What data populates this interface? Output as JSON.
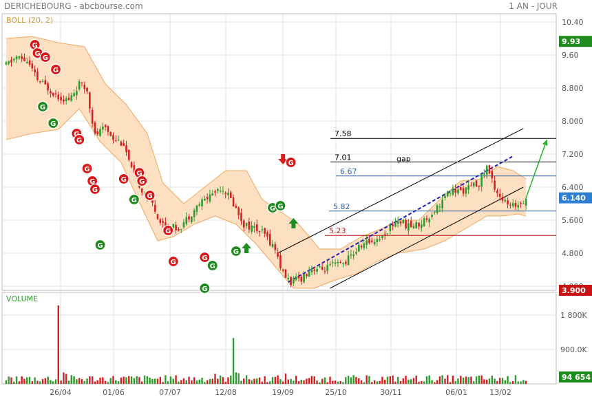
{
  "header": {
    "title": "DERICHEBOURG - abcbourse.com",
    "period": "1 AN - JOUR"
  },
  "colors": {
    "up": "#2e9b2e",
    "down": "#d42020",
    "band_fill": "#fde0c2",
    "band_line": "#f0a860",
    "grid": "#e2e2e2",
    "trend_dash": "#1f1fc0",
    "last_badge": "#2d7fd3",
    "high_badge": "#1e8c1e",
    "low_badge": "#c81414",
    "vol_badge": "#1e8c1e",
    "arrow_up": "#1e8c1e",
    "arrow_down": "#d42020",
    "projection": "#28b028"
  },
  "chart_data": [
    {
      "type": "candlestick",
      "title": "DERICHEBOURG",
      "indicator_label": "BOLL (20, 2)",
      "x_tick_labels": [
        "26/04",
        "01/06",
        "07/07",
        "12/08",
        "19/09",
        "25/10",
        "30/11",
        "06/01",
        "13/02"
      ],
      "y_tick_labels": [
        "4.000",
        "4.800",
        "5.600",
        "6.400",
        "7.200",
        "8.000",
        "8.800",
        "9.60",
        "10.40"
      ],
      "ylim": [
        3.9,
        10.6
      ],
      "grid": true,
      "badges": {
        "high": "9.93",
        "last": "6.140",
        "low": "3.900"
      },
      "horizontal_levels": [
        {
          "label": "7.58",
          "value": 7.58,
          "color": "#000000"
        },
        {
          "label": "7.01",
          "value": 7.01,
          "color": "#000000"
        },
        {
          "label": "6.67",
          "value": 6.67,
          "color": "#2f5fa8"
        },
        {
          "label": "5.82",
          "value": 5.82,
          "color": "#2f5fa8"
        },
        {
          "label": "5.23",
          "value": 5.23,
          "color": "#c81414"
        }
      ],
      "annotation": "gap",
      "path_points": [
        {
          "i": 0,
          "v": 9.35
        },
        {
          "i": 4,
          "v": 9.55
        },
        {
          "i": 8,
          "v": 9.45
        },
        {
          "i": 12,
          "v": 9.0
        },
        {
          "i": 16,
          "v": 8.8
        },
        {
          "i": 20,
          "v": 8.6
        },
        {
          "i": 24,
          "v": 8.5
        },
        {
          "i": 28,
          "v": 8.9
        },
        {
          "i": 31,
          "v": 8.75
        },
        {
          "i": 34,
          "v": 7.65
        },
        {
          "i": 38,
          "v": 7.85
        },
        {
          "i": 41,
          "v": 7.6
        },
        {
          "i": 45,
          "v": 7.45
        },
        {
          "i": 48,
          "v": 6.8
        },
        {
          "i": 52,
          "v": 6.35
        },
        {
          "i": 56,
          "v": 6.0
        },
        {
          "i": 59,
          "v": 5.55
        },
        {
          "i": 62,
          "v": 5.45
        },
        {
          "i": 66,
          "v": 5.4
        },
        {
          "i": 70,
          "v": 5.7
        },
        {
          "i": 74,
          "v": 6.0
        },
        {
          "i": 78,
          "v": 6.2
        },
        {
          "i": 82,
          "v": 6.4
        },
        {
          "i": 84,
          "v": 6.3
        },
        {
          "i": 87,
          "v": 6.0
        },
        {
          "i": 91,
          "v": 5.5
        },
        {
          "i": 95,
          "v": 5.4
        },
        {
          "i": 99,
          "v": 5.25
        },
        {
          "i": 103,
          "v": 4.9
        },
        {
          "i": 106,
          "v": 4.3
        },
        {
          "i": 109,
          "v": 4.1
        },
        {
          "i": 113,
          "v": 4.2
        },
        {
          "i": 117,
          "v": 4.45
        },
        {
          "i": 121,
          "v": 4.4
        },
        {
          "i": 125,
          "v": 4.5
        },
        {
          "i": 129,
          "v": 4.55
        },
        {
          "i": 133,
          "v": 4.8
        },
        {
          "i": 136,
          "v": 5.0
        },
        {
          "i": 140,
          "v": 5.1
        },
        {
          "i": 144,
          "v": 5.2
        },
        {
          "i": 148,
          "v": 5.5
        },
        {
          "i": 150,
          "v": 5.6
        },
        {
          "i": 154,
          "v": 5.45
        },
        {
          "i": 158,
          "v": 5.5
        },
        {
          "i": 162,
          "v": 5.7
        },
        {
          "i": 166,
          "v": 6.0
        },
        {
          "i": 170,
          "v": 6.3
        },
        {
          "i": 174,
          "v": 6.3
        },
        {
          "i": 178,
          "v": 6.4
        },
        {
          "i": 181,
          "v": 6.5
        },
        {
          "i": 184,
          "v": 6.9
        },
        {
          "i": 187,
          "v": 6.4
        },
        {
          "i": 190,
          "v": 6.1
        },
        {
          "i": 193,
          "v": 5.9
        },
        {
          "i": 196,
          "v": 6.0
        },
        {
          "i": 199,
          "v": 6.14
        }
      ],
      "band_upper": [
        {
          "i": 0,
          "v": 10.0
        },
        {
          "i": 10,
          "v": 10.05
        },
        {
          "i": 20,
          "v": 9.9
        },
        {
          "i": 30,
          "v": 9.8
        },
        {
          "i": 38,
          "v": 8.9
        },
        {
          "i": 46,
          "v": 8.4
        },
        {
          "i": 54,
          "v": 7.7
        },
        {
          "i": 60,
          "v": 6.5
        },
        {
          "i": 68,
          "v": 6.0
        },
        {
          "i": 76,
          "v": 6.4
        },
        {
          "i": 84,
          "v": 6.8
        },
        {
          "i": 92,
          "v": 6.8
        },
        {
          "i": 98,
          "v": 6.1
        },
        {
          "i": 104,
          "v": 5.85
        },
        {
          "i": 112,
          "v": 5.5
        },
        {
          "i": 120,
          "v": 4.9
        },
        {
          "i": 128,
          "v": 4.9
        },
        {
          "i": 136,
          "v": 5.2
        },
        {
          "i": 144,
          "v": 5.4
        },
        {
          "i": 150,
          "v": 5.6
        },
        {
          "i": 158,
          "v": 5.6
        },
        {
          "i": 166,
          "v": 6.1
        },
        {
          "i": 174,
          "v": 6.55
        },
        {
          "i": 182,
          "v": 6.6
        },
        {
          "i": 188,
          "v": 6.9
        },
        {
          "i": 194,
          "v": 6.8
        },
        {
          "i": 199,
          "v": 6.6
        }
      ],
      "band_lower": [
        {
          "i": 0,
          "v": 7.55
        },
        {
          "i": 10,
          "v": 7.7
        },
        {
          "i": 20,
          "v": 7.8
        },
        {
          "i": 28,
          "v": 8.3
        },
        {
          "i": 36,
          "v": 7.5
        },
        {
          "i": 44,
          "v": 7.0
        },
        {
          "i": 52,
          "v": 5.9
        },
        {
          "i": 58,
          "v": 5.1
        },
        {
          "i": 64,
          "v": 5.2
        },
        {
          "i": 72,
          "v": 5.5
        },
        {
          "i": 80,
          "v": 5.7
        },
        {
          "i": 88,
          "v": 5.5
        },
        {
          "i": 96,
          "v": 5.0
        },
        {
          "i": 104,
          "v": 4.4
        },
        {
          "i": 110,
          "v": 3.95
        },
        {
          "i": 118,
          "v": 3.95
        },
        {
          "i": 126,
          "v": 4.15
        },
        {
          "i": 134,
          "v": 4.3
        },
        {
          "i": 142,
          "v": 4.6
        },
        {
          "i": 150,
          "v": 4.8
        },
        {
          "i": 160,
          "v": 4.9
        },
        {
          "i": 168,
          "v": 5.1
        },
        {
          "i": 176,
          "v": 5.4
        },
        {
          "i": 184,
          "v": 5.7
        },
        {
          "i": 190,
          "v": 5.7
        },
        {
          "i": 196,
          "v": 5.75
        },
        {
          "i": 199,
          "v": 5.7
        }
      ],
      "channel_lines": [
        {
          "from": {
            "i": 104,
            "v": 4.8
          },
          "to": {
            "i": 198,
            "v": 7.82
          }
        },
        {
          "from": {
            "i": 124,
            "v": 3.95
          },
          "to": {
            "i": 198,
            "v": 6.4
          }
        },
        {
          "from": {
            "i": 108,
            "v": 4.1
          },
          "to": {
            "i": 194,
            "v": 7.15
          },
          "dashed": true
        }
      ],
      "projection_arrow": {
        "from": {
          "i": 199,
          "v": 6.14
        },
        "to": {
          "i": 207,
          "v": 7.55
        }
      },
      "signals": [
        {
          "type": "G",
          "color": "red",
          "i": 11,
          "v": 9.85
        },
        {
          "type": "G",
          "color": "red",
          "i": 12,
          "v": 9.65
        },
        {
          "type": "G",
          "color": "red",
          "i": 15,
          "v": 9.55
        },
        {
          "type": "G",
          "color": "red",
          "i": 19,
          "v": 9.25
        },
        {
          "type": "G",
          "color": "green",
          "i": 14,
          "v": 8.35
        },
        {
          "type": "G",
          "color": "green",
          "i": 18,
          "v": 7.95
        },
        {
          "type": "G",
          "color": "red",
          "i": 27,
          "v": 7.7
        },
        {
          "type": "G",
          "color": "red",
          "i": 28,
          "v": 7.55
        },
        {
          "type": "G",
          "color": "red",
          "i": 31,
          "v": 6.85
        },
        {
          "type": "G",
          "color": "red",
          "i": 33,
          "v": 6.55
        },
        {
          "type": "G",
          "color": "red",
          "i": 34,
          "v": 6.35
        },
        {
          "type": "G",
          "color": "green",
          "i": 36,
          "v": 5.0
        },
        {
          "type": "G",
          "color": "red",
          "i": 45,
          "v": 6.6
        },
        {
          "type": "G",
          "color": "red",
          "i": 51,
          "v": 6.75
        },
        {
          "type": "G",
          "color": "red",
          "i": 52,
          "v": 6.55
        },
        {
          "type": "G",
          "color": "green",
          "i": 49,
          "v": 6.1
        },
        {
          "type": "G",
          "color": "red",
          "i": 55,
          "v": 6.2
        },
        {
          "type": "G",
          "color": "red",
          "i": 62,
          "v": 5.35
        },
        {
          "type": "G",
          "color": "red",
          "i": 64,
          "v": 4.6
        },
        {
          "type": "G",
          "color": "red",
          "i": 76,
          "v": 4.7
        },
        {
          "type": "G",
          "color": "green",
          "i": 76,
          "v": 3.95
        },
        {
          "type": "G",
          "color": "green",
          "i": 79,
          "v": 4.5
        },
        {
          "type": "G",
          "color": "green",
          "i": 88,
          "v": 4.85
        },
        {
          "type": "G",
          "color": "green",
          "i": 102,
          "v": 5.9
        },
        {
          "type": "G",
          "color": "green",
          "i": 105,
          "v": 5.95
        },
        {
          "type": "G",
          "color": "red",
          "i": 109,
          "v": 7.0
        }
      ],
      "arrows": [
        {
          "dir": "up",
          "i": 92,
          "v": 4.9
        },
        {
          "dir": "down",
          "i": 106,
          "v": 7.1
        },
        {
          "dir": "up",
          "i": 110,
          "v": 5.5
        }
      ]
    },
    {
      "type": "bar",
      "title": "VOLUME",
      "y_tick_labels": [
        "900.0K",
        "1 800K"
      ],
      "ylim": [
        0,
        2250000
      ],
      "last_volume_label": "94 654",
      "spikes": [
        {
          "i": 20,
          "value": 2050000,
          "color": "red"
        },
        {
          "i": 22,
          "value": 300000,
          "color": "red"
        },
        {
          "i": 23,
          "value": 260000,
          "color": "red"
        },
        {
          "i": 87,
          "value": 1200000,
          "color": "green"
        },
        {
          "i": 88,
          "value": 300000,
          "color": "green"
        },
        {
          "i": 89,
          "value": 280000,
          "color": "green"
        },
        {
          "i": 80,
          "value": 260000,
          "color": "red"
        },
        {
          "i": 107,
          "value": 270000,
          "color": "red"
        }
      ]
    }
  ]
}
